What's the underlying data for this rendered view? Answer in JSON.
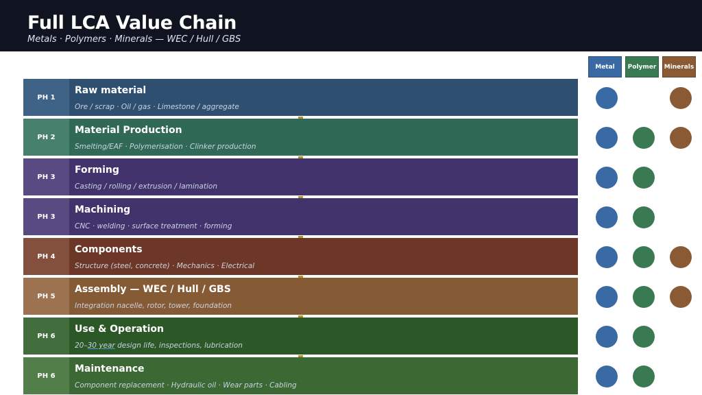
{
  "header": {
    "title": "Full LCA Value Chain",
    "subtitle": "Metals · Polymers · Minerals — WEC / Hull / GBS"
  },
  "legend": [
    {
      "label": "Metal",
      "color": "#3a6aa3"
    },
    {
      "label": "Polymer",
      "color": "#3a7a52"
    },
    {
      "label": "Minerals",
      "color": "#8a5a35"
    }
  ],
  "rows": [
    {
      "phase": "PH 1",
      "label": "Raw material",
      "desc": "Ore / scrap · Oil / gas · Limestone / aggregate",
      "bg": "#2e4f70",
      "phase_bg": "#3f6386",
      "metal": true,
      "polymer": false,
      "minerals": true
    },
    {
      "phase": "PH 2",
      "label": "Material Production",
      "desc": "Smelting/EAF · Polymerisation · Clinker production",
      "bg": "#306a56",
      "phase_bg": "#47806c",
      "metal": true,
      "polymer": true,
      "minerals": true
    },
    {
      "phase": "PH 3",
      "label": "Forming",
      "desc": "Casting / rolling / extrusion / lamination",
      "bg": "#43336d",
      "phase_bg": "#5a4a82",
      "metal": true,
      "polymer": true,
      "minerals": false
    },
    {
      "phase": "PH 3",
      "label": "Machining",
      "desc": "CNC · welding · surface treatment · forming",
      "bg": "#43336d",
      "phase_bg": "#5a4a82",
      "metal": true,
      "polymer": true,
      "minerals": false
    },
    {
      "phase": "PH 4",
      "label": "Components",
      "desc": "Structure (steel, concrete) · Mechanics · Electrical",
      "bg": "#6c3726",
      "phase_bg": "#84503e",
      "metal": true,
      "polymer": true,
      "minerals": true
    },
    {
      "phase": "PH 5",
      "label": "Assembly — WEC / Hull / GBS",
      "desc": "Integration nacelle, rotor, tower, foundation",
      "bg": "#855b36",
      "phase_bg": "#9c7250",
      "metal": true,
      "polymer": true,
      "minerals": true
    },
    {
      "phase": "PH 6",
      "label": "Use & Operation",
      "desc_parts": [
        "20–",
        "30 year",
        " design life, inspections, lubrication"
      ],
      "bg": "#2c5727",
      "phase_bg": "#416e3c",
      "metal": true,
      "polymer": true,
      "minerals": false
    },
    {
      "phase": "PH 6",
      "label": "Maintenance",
      "desc": "Component replacement · Hydraulic oil · Wear parts · Cabling",
      "bg": "#3c6833",
      "phase_bg": "#527f49",
      "metal": true,
      "polymer": true,
      "minerals": false
    }
  ]
}
